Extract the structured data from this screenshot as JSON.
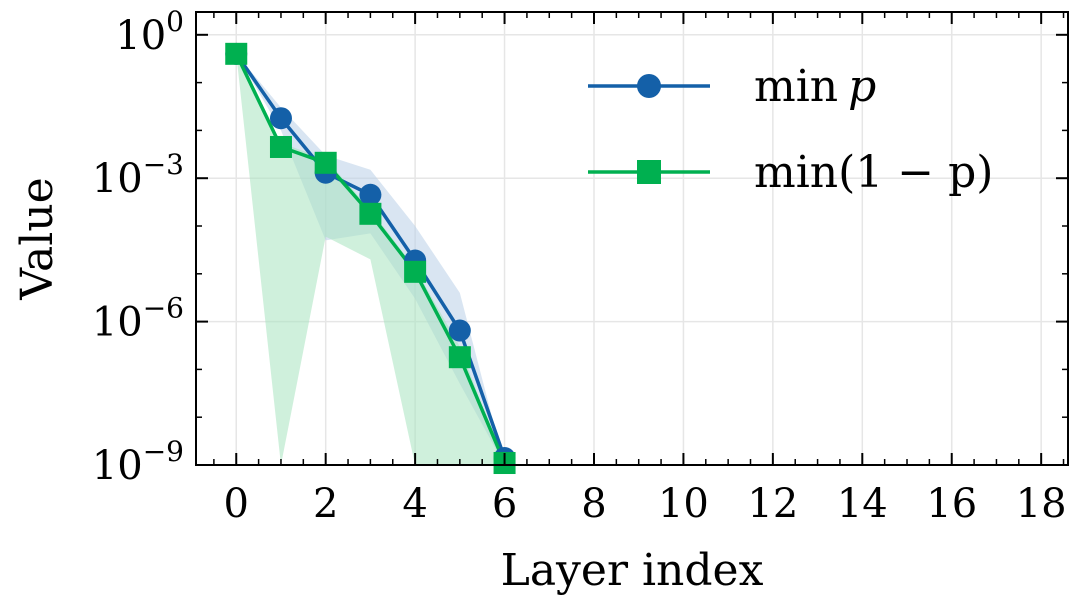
{
  "chart_data": {
    "type": "line",
    "xlabel": "Layer index",
    "ylabel": "Value",
    "yscale": "log",
    "xlim": [
      -0.9,
      18.6
    ],
    "ylim": [
      1e-09,
      3
    ],
    "xticks": [
      0,
      2,
      4,
      6,
      8,
      10,
      12,
      14,
      16,
      18
    ],
    "xtick_labels": [
      "0",
      "2",
      "4",
      "6",
      "8",
      "10",
      "12",
      "14",
      "16",
      "18"
    ],
    "yticks": [
      1,
      0.001,
      1e-06,
      1e-09
    ],
    "ytick_labels": [
      {
        "base": "10",
        "exp": "0"
      },
      {
        "base": "10",
        "exp": "−3"
      },
      {
        "base": "10",
        "exp": "−6"
      },
      {
        "base": "10",
        "exp": "−9"
      }
    ],
    "grid": true,
    "legend_position": "top-right",
    "series": [
      {
        "name": "min p",
        "legend_parts": {
          "func": "min",
          "arg": "p"
        },
        "color": "#1460a8",
        "band_color": "#b9cfe8",
        "marker": "circle",
        "x": [
          0,
          1,
          2,
          3,
          4,
          5,
          6
        ],
        "y": [
          0.4,
          0.018,
          0.0013,
          0.00045,
          1.9e-05,
          6.5e-07,
          1.4e-09
        ],
        "band_lower": [
          0.4,
          0.01,
          5e-05,
          7e-05,
          3e-06,
          5e-08,
          1e-09
        ],
        "band_upper": [
          0.4,
          0.03,
          0.003,
          0.0015,
          0.0001,
          4e-06,
          1e-09
        ]
      },
      {
        "name": "min(1 − p)",
        "legend_parts": {
          "func": "min",
          "arg": "(1 − p)"
        },
        "color": "#00b050",
        "band_color": "#a8e4c0",
        "marker": "square",
        "x": [
          0,
          1,
          2,
          3,
          4,
          5,
          6
        ],
        "y": [
          0.4,
          0.0045,
          0.0021,
          0.00018,
          1.1e-05,
          1.8e-07,
          1.1e-09
        ],
        "band_lower": [
          0.4,
          1e-09,
          6e-05,
          2e-05,
          1e-09,
          1e-09,
          1e-09
        ],
        "band_upper": [
          0.4,
          0.0055,
          0.0025,
          0.00022,
          1.3e-05,
          3e-07,
          1e-09
        ]
      }
    ]
  }
}
